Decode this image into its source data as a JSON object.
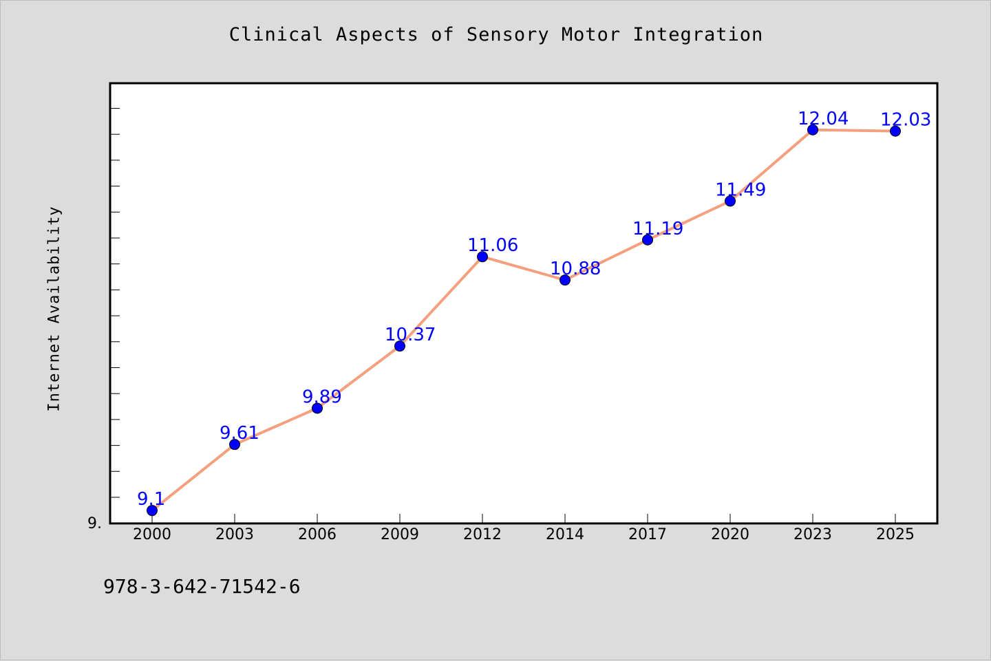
{
  "chart_data": {
    "type": "line",
    "title": "Clinical Aspects of Sensory Motor Integration",
    "xlabel": "",
    "ylabel": "Internet Availability",
    "categories": [
      "2000",
      "2003",
      "2006",
      "2009",
      "2012",
      "2014",
      "2017",
      "2020",
      "2023",
      "2025"
    ],
    "series": [
      {
        "values": [
          9.1,
          9.61,
          9.89,
          10.37,
          11.06,
          10.88,
          11.19,
          11.49,
          12.04,
          12.03
        ],
        "labels": [
          "9.1",
          "9.61",
          "9.89",
          "10.37",
          "11.06",
          "10.88",
          "11.19",
          "11.49",
          "12.04",
          "12.03"
        ]
      }
    ],
    "y_tick_label": "9.",
    "ylim": [
      9.0,
      12.4
    ],
    "grid": false,
    "colors": {
      "line": "#f4a07f",
      "marker": "#0000ff",
      "label": "#0000ff",
      "background": "#dcdcdc",
      "plot_background": "#ffffff"
    }
  },
  "footer": {
    "text": "978-3-642-71542-6"
  }
}
